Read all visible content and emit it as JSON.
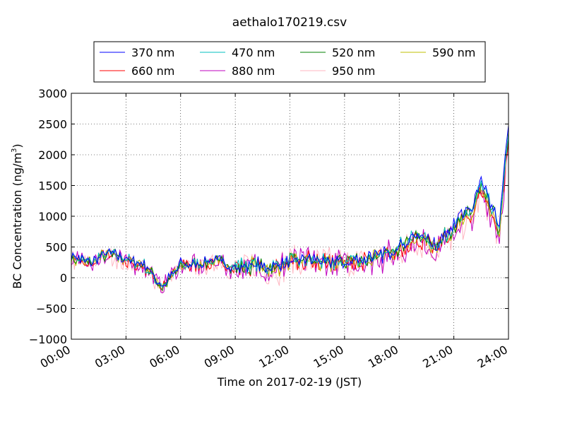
{
  "chart_data": {
    "type": "line",
    "title": "aethalo170219.csv",
    "xlabel": "Time on 2017-02-19 (JST)",
    "ylabel": "BC Concentration (ng/m³)",
    "ylabel_parts": {
      "main": "BC Concentration (ng/m",
      "sup": "3",
      "close": ")"
    },
    "ylim": [
      -1000,
      3000
    ],
    "yticks": [
      -1000,
      -500,
      0,
      500,
      1000,
      1500,
      2000,
      2500,
      3000
    ],
    "ytick_labels": [
      "−1000",
      "−500",
      "0",
      "500",
      "1000",
      "1500",
      "2000",
      "2500",
      "3000"
    ],
    "xlim_hours": [
      0,
      24
    ],
    "xtick_hours": [
      0,
      3,
      6,
      9,
      12,
      15,
      18,
      21,
      24
    ],
    "xtick_labels": [
      "00:00",
      "03:00",
      "06:00",
      "09:00",
      "12:00",
      "15:00",
      "18:00",
      "21:00",
      "24:00"
    ],
    "grid": true,
    "legend_position": "top (above axes)",
    "series": [
      {
        "name": "370 nm",
        "color": "#0000ff"
      },
      {
        "name": "470 nm",
        "color": "#00bfbf"
      },
      {
        "name": "520 nm",
        "color": "#008000"
      },
      {
        "name": "590 nm",
        "color": "#bfbf00"
      },
      {
        "name": "660 nm",
        "color": "#ff0000"
      },
      {
        "name": "880 nm",
        "color": "#bf00bf"
      },
      {
        "name": "950 nm",
        "color": "#ffb6c1"
      }
    ],
    "base_profile": {
      "hours": [
        0,
        1,
        2,
        3,
        4,
        5,
        6,
        7,
        8,
        9,
        10,
        11,
        12,
        13,
        14,
        15,
        16,
        17,
        18,
        19,
        20,
        21,
        22,
        22.5,
        23,
        23.5,
        24
      ],
      "values": [
        320,
        240,
        380,
        280,
        200,
        -150,
        200,
        220,
        250,
        170,
        200,
        150,
        250,
        280,
        230,
        250,
        280,
        330,
        480,
        650,
        500,
        820,
        1050,
        1450,
        1100,
        750,
        2300
      ]
    }
  }
}
